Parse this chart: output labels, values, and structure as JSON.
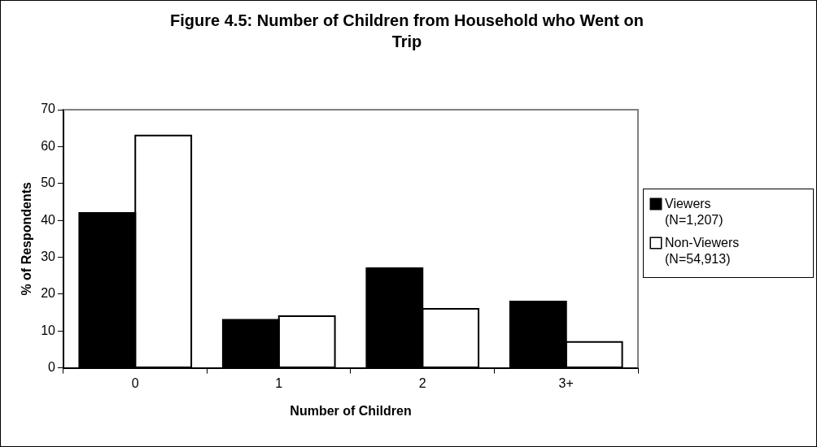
{
  "chart_data": {
    "type": "bar",
    "title": "Figure 4.5: Number of Children from Household who Went on Trip",
    "xlabel": "Number of Children",
    "ylabel": "% of Respondents",
    "categories": [
      "0",
      "1",
      "2",
      "3+"
    ],
    "series": [
      {
        "name": "Viewers (N=1,207)",
        "color": "#000000",
        "values": [
          42,
          13,
          27,
          18
        ]
      },
      {
        "name": "Non-Viewers (N=54,913)",
        "color": "#ffffff",
        "values": [
          63,
          14,
          16,
          7
        ]
      }
    ],
    "ylim": [
      0,
      70
    ],
    "yticks": [
      0,
      10,
      20,
      30,
      40,
      50,
      60,
      70
    ],
    "grid": false,
    "legend": "right"
  }
}
